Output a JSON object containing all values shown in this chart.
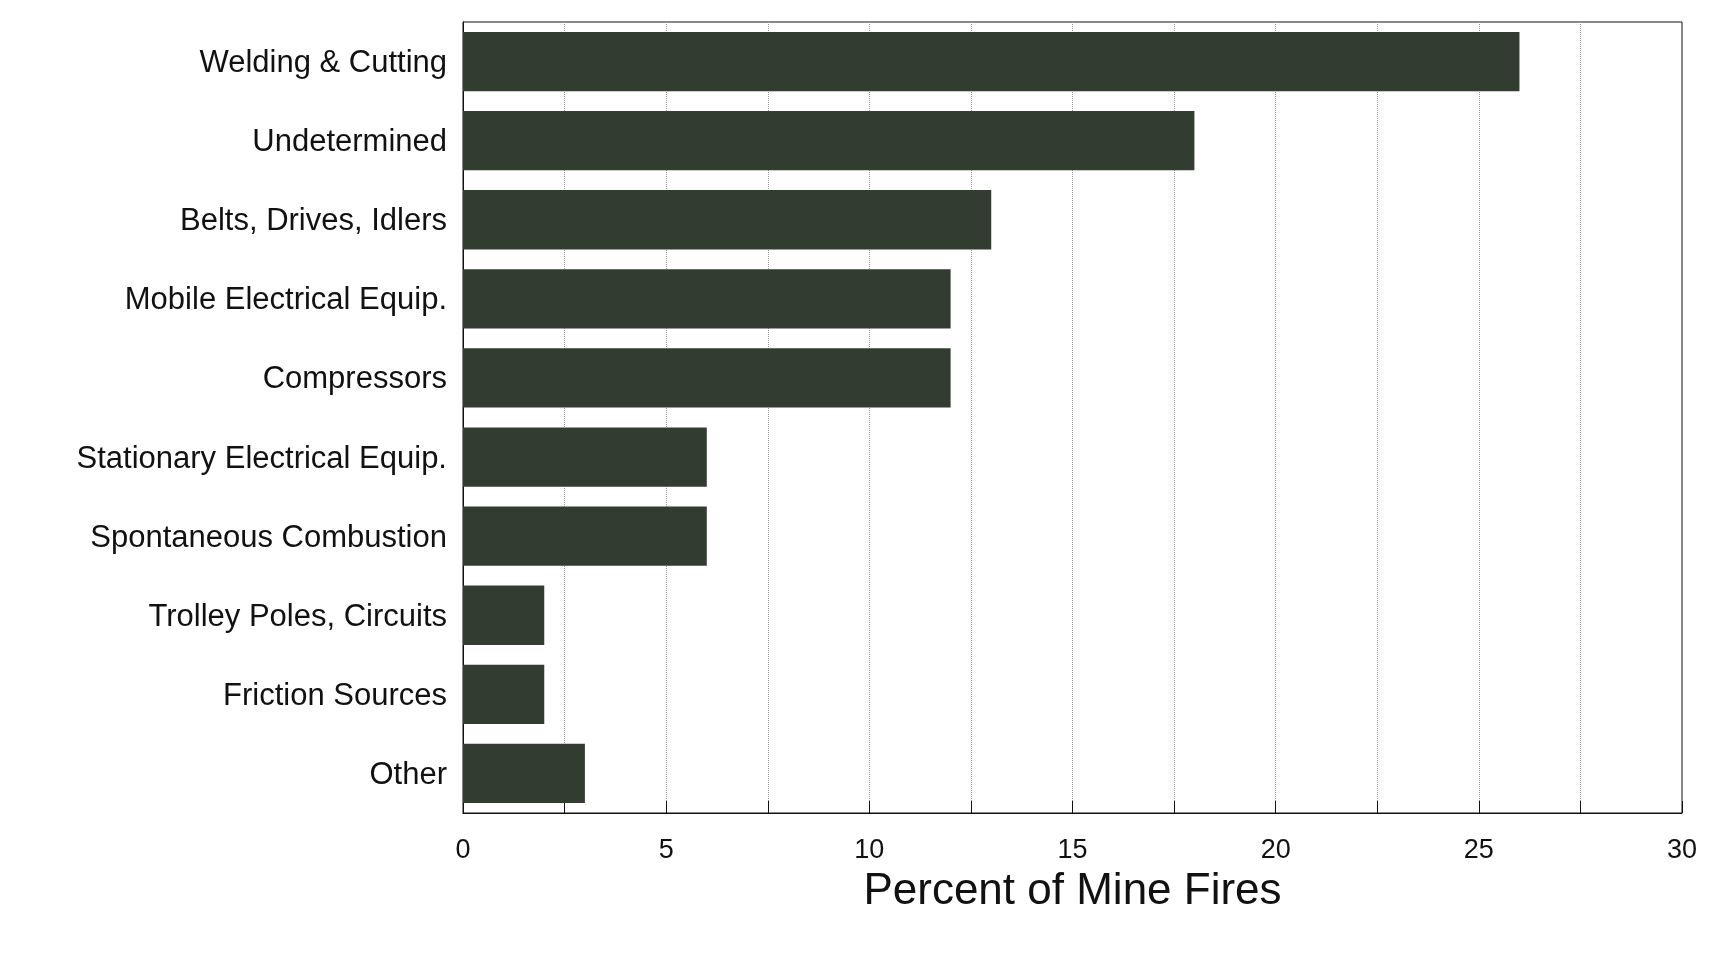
{
  "chart_data": {
    "type": "bar",
    "orientation": "horizontal",
    "xlabel": "Percent of Mine Fires",
    "categories": [
      "Welding & Cutting",
      "Undetermined",
      "Belts, Drives, Idlers",
      "Mobile Electrical Equip.",
      "Compressors",
      "Stationary Electrical Equip.",
      "Spontaneous Combustion",
      "Trolley Poles, Circuits",
      "Friction Sources",
      "Other"
    ],
    "values": [
      26,
      18,
      13,
      12,
      12,
      6,
      6,
      2,
      2,
      3
    ],
    "color": "#323c30",
    "xlim": [
      0,
      30
    ],
    "xticks": [
      0,
      {
        "value": 2.5,
        "label": null
      },
      5,
      {
        "value": 7.5,
        "label": null
      },
      10,
      {
        "value": 12.5,
        "label": null
      },
      15,
      {
        "value": 17.5,
        "label": null
      },
      20,
      {
        "value": 22.5,
        "label": null
      },
      25,
      {
        "value": 27.5,
        "label": null
      },
      30
    ],
    "grid": "x"
  }
}
